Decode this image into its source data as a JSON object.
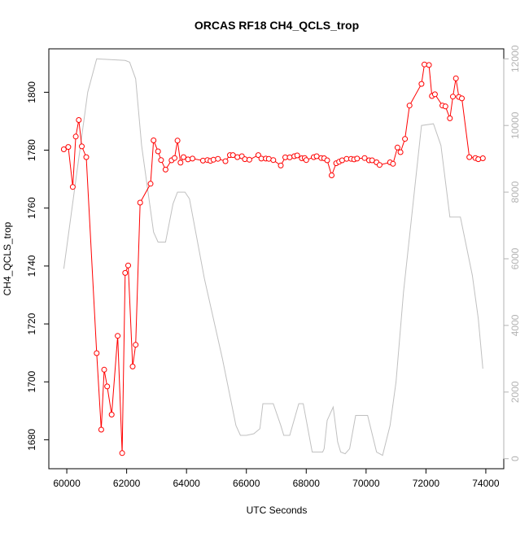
{
  "chart_data": {
    "type": "line",
    "title": "ORCAS RF18 CH4_QCLS_trop",
    "xlabel": "UTC Seconds",
    "ylabel": "CH4_QCLS_trop",
    "xlim": [
      59400,
      74600
    ],
    "ylim": [
      1670,
      1815
    ],
    "y2lim": [
      -300,
      12300
    ],
    "x_ticks": [
      60000,
      62000,
      64000,
      66000,
      68000,
      70000,
      72000,
      74000
    ],
    "y_ticks": [
      1680,
      1700,
      1720,
      1740,
      1760,
      1780,
      1800
    ],
    "y2_ticks": [
      0,
      2000,
      4000,
      6000,
      8000,
      10000,
      12000
    ],
    "grid": false,
    "series": [
      {
        "color": "#ff0000",
        "style": "line-with-open-circles",
        "axis": "left",
        "x": [
          59900,
          60050,
          60200,
          60300,
          60400,
          60500,
          60650,
          61000,
          61150,
          61250,
          61350,
          61500,
          61700,
          61850,
          61950,
          62050,
          62200,
          62300,
          62450,
          62800,
          62900,
          63050,
          63150,
          63300,
          63500,
          63600,
          63700,
          63800,
          63900,
          64050,
          64200,
          64550,
          64700,
          64800,
          64900,
          65050,
          65300,
          65450,
          65550,
          65700,
          65850,
          65950,
          66100,
          66400,
          66500,
          66650,
          66750,
          66900,
          67150,
          67300,
          67450,
          67600,
          67700,
          67850,
          67950,
          68000,
          68250,
          68350,
          68500,
          68600,
          68700,
          68850,
          69000,
          69100,
          69200,
          69350,
          69500,
          69600,
          69700,
          69950,
          70100,
          70200,
          70350,
          70450,
          70800,
          70900,
          71050,
          71150,
          71300,
          71450,
          71850,
          71950,
          72100,
          72200,
          72300,
          72550,
          72650,
          72800,
          72900,
          73000,
          73100,
          73200,
          73450,
          73650,
          73750,
          73900
        ],
        "y": [
          1780.3,
          1781.1,
          1767.3,
          1784.7,
          1790.4,
          1781.3,
          1777.6,
          1709.9,
          1683.5,
          1704.2,
          1698.4,
          1688.7,
          1715.9,
          1675.4,
          1737.6,
          1740.2,
          1705.3,
          1712.8,
          1761.9,
          1768.4,
          1783.4,
          1779.6,
          1776.6,
          1773.3,
          1776.5,
          1777.3,
          1783.3,
          1775.7,
          1777.6,
          1776.8,
          1777.1,
          1776.4,
          1776.6,
          1776.3,
          1776.7,
          1777.0,
          1776.2,
          1778.3,
          1778.3,
          1777.6,
          1777.9,
          1776.9,
          1776.7,
          1778.3,
          1777.1,
          1777.1,
          1777.0,
          1776.6,
          1774.7,
          1777.5,
          1777.5,
          1777.9,
          1778.2,
          1777.2,
          1777.3,
          1776.6,
          1777.6,
          1777.9,
          1777.3,
          1777.2,
          1776.5,
          1771.3,
          1775.5,
          1776.0,
          1776.5,
          1777.0,
          1777.0,
          1776.8,
          1777.1,
          1777.3,
          1776.5,
          1776.5,
          1775.8,
          1774.9,
          1775.8,
          1775.3,
          1780.9,
          1779.3,
          1783.9,
          1795.4,
          1802.9,
          1809.6,
          1809.4,
          1798.7,
          1799.3,
          1795.4,
          1795.1,
          1791.0,
          1798.5,
          1804.8,
          1798.4,
          1797.9,
          1777.6,
          1777.3,
          1776.9,
          1777.2
        ]
      },
      {
        "color": "#c0c0c0",
        "style": "line",
        "axis": "right",
        "x": [
          59900,
          60700,
          61000,
          61950,
          62100,
          62300,
          62500,
          62900,
          63050,
          63300,
          63550,
          63700,
          63950,
          64100,
          64600,
          65200,
          65650,
          65800,
          66000,
          66250,
          66450,
          66550,
          66900,
          67150,
          67250,
          67450,
          67750,
          67900,
          68200,
          68550,
          68600,
          68700,
          68900,
          69050,
          69150,
          69300,
          69450,
          69650,
          69950,
          70050,
          70350,
          70550,
          70800,
          71000,
          71250,
          71850,
          72250,
          72500,
          72800,
          73150,
          73550,
          73750,
          73900
        ],
        "y": [
          5700,
          11000,
          12000,
          11950,
          11900,
          11400,
          9400,
          6800,
          6500,
          6500,
          7650,
          8000,
          8000,
          7800,
          5400,
          3000,
          1000,
          700,
          700,
          750,
          900,
          1650,
          1650,
          1000,
          700,
          700,
          1650,
          1650,
          200,
          200,
          300,
          1150,
          1550,
          500,
          200,
          150,
          300,
          1300,
          1300,
          1300,
          200,
          100,
          1000,
          2300,
          5000,
          10000,
          10050,
          9400,
          7250,
          7250,
          5500,
          4200,
          2700
        ]
      }
    ]
  }
}
